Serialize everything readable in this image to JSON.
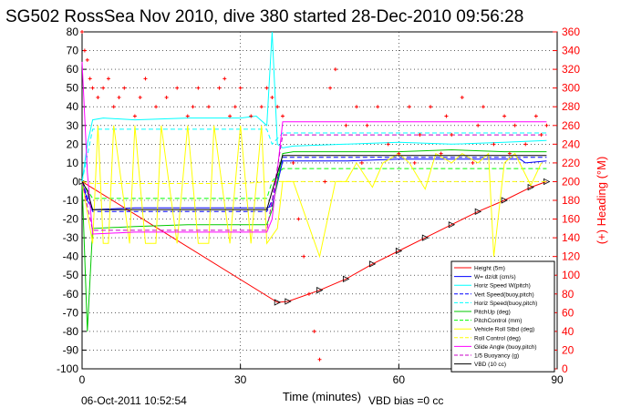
{
  "chart_data": {
    "type": "line",
    "title": "SG502 RossSea Nov 2010, dive 380 started 28-Dec-2010 09:56:28",
    "xlabel": "Time (minutes)",
    "ylabel_right": "(+) Heading (°M)",
    "footer_left": "06-Oct-2011 10:52:54",
    "footer_right": "VBD bias =0 cc",
    "xlim": [
      0,
      90
    ],
    "ylim": [
      -100,
      80
    ],
    "ylim_right": [
      0,
      360
    ],
    "x_ticks": [
      0,
      30,
      60,
      90
    ],
    "y_ticks": [
      -100,
      -90,
      -80,
      -70,
      -60,
      -50,
      -40,
      -30,
      -20,
      -10,
      0,
      10,
      20,
      30,
      40,
      50,
      60,
      70,
      80
    ],
    "y_ticks_right": [
      0,
      20,
      40,
      60,
      80,
      100,
      120,
      140,
      160,
      180,
      200,
      220,
      240,
      260,
      280,
      300,
      320,
      340,
      360
    ],
    "grid": true,
    "legend_position": "bottom-right",
    "colors": {
      "height": "#ff0000",
      "w": "#0000ff",
      "horz_w": "#00ffff",
      "vert_buoy": "#0000ff",
      "horz_buoy": "#00ffff",
      "pitch": "#00c800",
      "pitch_ctrl": "#00ff00",
      "vehicle_roll": "#ffff00",
      "roll_ctrl": "#ffff00",
      "glide": "#ff00ff",
      "buoyancy": "#c800c8",
      "vbd": "#000000",
      "heading": "#ff0000"
    },
    "series": [
      {
        "name": "Height (5m)",
        "color": "#ff0000",
        "style": "solid",
        "x": [
          0,
          37,
          39,
          45,
          50,
          55,
          60,
          65,
          70,
          75,
          80,
          85,
          88
        ],
        "y": [
          0,
          -64.5,
          -64,
          -58,
          -52,
          -44,
          -37,
          -30,
          -23,
          -16,
          -10,
          -3,
          0
        ]
      },
      {
        "name": "W= dz/dt (cm/s)",
        "color": "#0000ff",
        "style": "solid",
        "x": [
          0,
          1,
          2,
          10,
          20,
          30,
          35,
          36,
          38,
          40,
          50,
          60,
          70,
          80,
          83,
          84,
          88
        ],
        "y": [
          0,
          -10,
          -15,
          -14,
          -14,
          -14,
          -14,
          -13,
          11,
          11,
          11,
          12,
          12,
          12,
          12,
          10,
          11
        ]
      },
      {
        "name": "Horiz Speed W(pitch)",
        "color": "#00ffff",
        "style": "solid",
        "x": [
          0,
          1,
          2,
          4,
          10,
          20,
          30,
          33,
          35,
          36,
          37,
          38,
          40,
          50,
          60,
          70,
          80,
          88
        ],
        "y": [
          0,
          20,
          33,
          34,
          33,
          34,
          34,
          35,
          30,
          80,
          20,
          18,
          19,
          20,
          21,
          20,
          21,
          22
        ]
      },
      {
        "name": "Vert Speed(buoy,pitch)",
        "color": "#0000ff",
        "style": "dashed",
        "x": [
          0,
          2,
          10,
          20,
          30,
          35,
          36,
          38,
          50,
          60,
          70,
          80,
          88
        ],
        "y": [
          0,
          -16,
          -16,
          -16,
          -16,
          -16,
          -10,
          13,
          13,
          13,
          13,
          13,
          13
        ]
      },
      {
        "name": "Horiz Speed(buoy,pitch)",
        "color": "#00ffff",
        "style": "dashed",
        "x": [
          0,
          2,
          10,
          20,
          30,
          35,
          36,
          38,
          50,
          60,
          70,
          80,
          88
        ],
        "y": [
          0,
          28,
          28,
          28,
          28,
          28,
          20,
          26,
          26,
          26,
          26,
          26,
          26
        ]
      },
      {
        "name": "PitchUp (deg)",
        "color": "#00c800",
        "style": "solid",
        "x": [
          0,
          1,
          2,
          10,
          20,
          30,
          35,
          36,
          38,
          40,
          50,
          60,
          70,
          80,
          88
        ],
        "y": [
          0,
          -80,
          -25,
          -24,
          -23,
          -23,
          -23,
          -15,
          15,
          16,
          16,
          16,
          17,
          16,
          16
        ]
      },
      {
        "name": "PitchControl (mm)",
        "color": "#00ff00",
        "style": "dashed",
        "x": [
          0,
          2,
          10,
          20,
          30,
          35,
          36,
          38,
          50,
          60,
          70,
          80,
          88
        ],
        "y": [
          0,
          -9,
          -9,
          -9,
          -9,
          -9,
          0,
          7,
          7,
          7,
          7,
          7,
          7
        ]
      },
      {
        "name": "Vehicle Roll Stbd (deg)",
        "color": "#ffff00",
        "style": "solid",
        "x": [
          0,
          2,
          3,
          4,
          5,
          6,
          9,
          10,
          12,
          14,
          15,
          18,
          20,
          22,
          24,
          25,
          28,
          30,
          32,
          34,
          35,
          37,
          38,
          40,
          45,
          48,
          50,
          52,
          55,
          57,
          60,
          62,
          65,
          67,
          70,
          72,
          75,
          77,
          78,
          80,
          82,
          85,
          87
        ],
        "y": [
          0,
          -33,
          30,
          -33,
          -33,
          30,
          -33,
          30,
          -33,
          -33,
          30,
          -33,
          30,
          -33,
          -33,
          30,
          -33,
          30,
          -33,
          30,
          -33,
          -25,
          0,
          0,
          -40,
          0,
          0,
          10,
          -3,
          10,
          15,
          10,
          -4,
          15,
          10,
          15,
          10,
          15,
          -40,
          10,
          15,
          -2,
          10
        ]
      },
      {
        "name": "Roll Control (deg)",
        "color": "#ffff00",
        "style": "dashed",
        "x": [
          0,
          2,
          30,
          36,
          38,
          88
        ],
        "y": [
          0,
          -1,
          -1,
          0,
          0,
          0
        ]
      },
      {
        "name": "Glide Angle (buoy,pitch)",
        "color": "#ff00ff",
        "style": "solid",
        "x": [
          0,
          1,
          2,
          10,
          20,
          30,
          35,
          36,
          38,
          50,
          60,
          70,
          80,
          88
        ],
        "y": [
          64,
          5,
          -28,
          -27,
          -27,
          -27,
          -27,
          -20,
          32,
          32,
          32,
          32,
          32,
          32
        ]
      },
      {
        "name": "1/5 Buoyancy (g)",
        "color": "#c800c8",
        "style": "dashed",
        "x": [
          0,
          2,
          10,
          20,
          30,
          35,
          36,
          38,
          50,
          60,
          70,
          80,
          88
        ],
        "y": [
          0,
          -26,
          -26,
          -26,
          -26,
          -26,
          -10,
          25,
          25,
          25,
          25,
          25,
          25
        ]
      },
      {
        "name": "VBD (10 cc)",
        "color": "#000000",
        "style": "solid",
        "x": [
          0,
          1,
          2,
          10,
          20,
          30,
          35,
          36,
          38,
          50,
          60,
          70,
          80,
          88
        ],
        "y": [
          0,
          -5,
          -15,
          -15,
          -15,
          -15,
          -15,
          -5,
          14,
          14,
          14,
          14,
          14,
          14
        ]
      }
    ],
    "heading_series": {
      "name": "Heading (°M)",
      "axis": "right",
      "color": "#ff0000",
      "marker": "+",
      "x": [
        0,
        0.5,
        1,
        1.5,
        2,
        3,
        4,
        5,
        6,
        7,
        8,
        10,
        11,
        12,
        14,
        16,
        18,
        20,
        21,
        22,
        24,
        26,
        27,
        28,
        29,
        30,
        32,
        34,
        35,
        36,
        37,
        38,
        40,
        41,
        42,
        43,
        44,
        45,
        46,
        47,
        48,
        50,
        52,
        53,
        54,
        56,
        58,
        60,
        62,
        63,
        64,
        66,
        68,
        69,
        70,
        72,
        74,
        75,
        76,
        78,
        80,
        81,
        82,
        84,
        86,
        87,
        88
      ],
      "y": [
        360,
        340,
        330,
        310,
        300,
        290,
        300,
        310,
        280,
        290,
        300,
        270,
        290,
        310,
        280,
        290,
        300,
        270,
        280,
        300,
        280,
        300,
        310,
        270,
        280,
        300,
        270,
        280,
        300,
        290,
        280,
        270,
        220,
        160,
        120,
        80,
        40,
        10,
        200,
        300,
        320,
        260,
        280,
        220,
        260,
        280,
        240,
        230,
        280,
        220,
        250,
        280,
        230,
        270,
        250,
        290,
        220,
        260,
        280,
        240,
        270,
        230,
        260,
        240,
        270,
        250,
        260
      ]
    }
  }
}
